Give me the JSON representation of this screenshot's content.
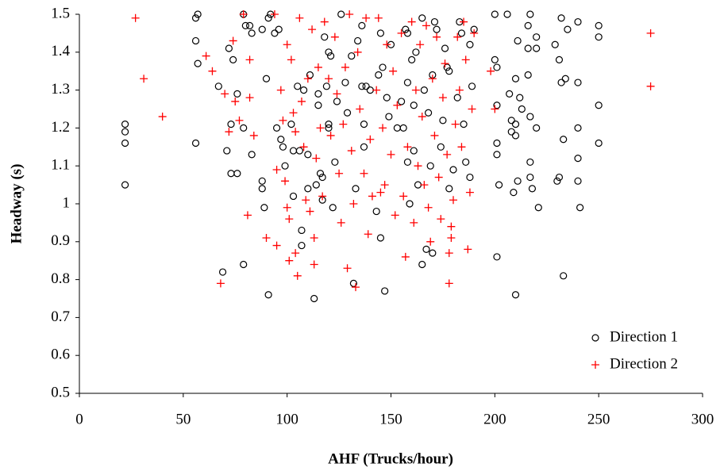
{
  "chart_data": {
    "type": "scatter",
    "xlabel": "AHF (Trucks/hour)",
    "ylabel": "Headway (s)",
    "xlim": [
      0,
      300
    ],
    "xticks": [
      0,
      50,
      100,
      150,
      200,
      250,
      300
    ],
    "ylim": [
      0.5,
      1.5
    ],
    "yticks": [
      0.5,
      0.6,
      0.7,
      0.8,
      0.9,
      1,
      1.1,
      1.2,
      1.3,
      1.4,
      1.5
    ],
    "grid": false,
    "legend": "lower right",
    "series": [
      {
        "name": "Direction 1",
        "color": "#000000",
        "marker": "circle",
        "x": [
          22,
          22,
          22,
          22,
          56,
          57,
          56,
          57,
          56,
          67,
          69,
          71,
          72,
          73,
          73,
          74,
          76,
          76,
          79,
          79,
          79,
          80,
          82,
          83,
          83,
          88,
          88,
          88,
          89,
          90,
          91,
          91,
          92,
          94,
          95,
          96,
          97,
          98,
          99,
          102,
          103,
          103,
          105,
          106,
          107,
          107,
          108,
          110,
          110,
          111,
          113,
          114,
          115,
          115,
          116,
          117,
          117,
          118,
          119,
          120,
          120,
          120,
          121,
          122,
          123,
          124,
          126,
          128,
          129,
          131,
          132,
          133,
          134,
          136,
          136,
          137,
          137,
          138,
          140,
          143,
          144,
          145,
          145,
          146,
          147,
          148,
          149,
          150,
          153,
          155,
          156,
          157,
          158,
          158,
          158,
          159,
          160,
          161,
          161,
          162,
          163,
          165,
          165,
          166,
          167,
          168,
          169,
          170,
          170,
          171,
          172,
          174,
          175,
          176,
          177,
          178,
          178,
          180,
          182,
          183,
          184,
          185,
          186,
          188,
          188,
          189,
          190,
          200,
          200,
          201,
          201,
          201,
          201,
          201,
          202,
          206,
          207,
          208,
          208,
          209,
          210,
          210,
          210,
          210,
          211,
          211,
          212,
          213,
          216,
          216,
          216,
          217,
          217,
          217,
          217,
          218,
          220,
          220,
          220,
          221,
          229,
          230,
          231,
          231,
          232,
          232,
          233,
          233,
          234,
          235,
          240,
          240,
          240,
          240,
          240,
          241,
          250,
          250,
          250,
          250
        ],
        "values": [
          1.21,
          1.19,
          1.16,
          1.05,
          1.49,
          1.5,
          1.43,
          1.37,
          1.16,
          1.31,
          0.82,
          1.14,
          1.41,
          1.21,
          1.08,
          1.38,
          1.29,
          1.08,
          1.5,
          1.2,
          0.84,
          1.47,
          1.47,
          1.45,
          1.13,
          1.46,
          1.06,
          1.04,
          0.99,
          1.33,
          0.76,
          1.49,
          1.5,
          1.45,
          1.2,
          1.46,
          1.17,
          1.15,
          1.1,
          1.21,
          1.14,
          1.02,
          1.31,
          1.14,
          0.93,
          0.89,
          1.3,
          1.04,
          1.13,
          1.34,
          0.75,
          1.05,
          1.26,
          1.29,
          1.08,
          1.07,
          1.01,
          1.44,
          1.31,
          1.4,
          1.21,
          1.2,
          1.39,
          0.99,
          1.11,
          1.27,
          1.5,
          1.32,
          1.24,
          1.39,
          0.79,
          1.04,
          1.43,
          1.47,
          1.31,
          1.21,
          1.15,
          1.31,
          1.3,
          0.98,
          1.34,
          1.45,
          0.91,
          1.36,
          0.77,
          1.28,
          1.23,
          1.42,
          1.2,
          1.27,
          1.2,
          1.46,
          1.45,
          1.32,
          1.11,
          1,
          1.38,
          1.26,
          1.14,
          1.4,
          1.05,
          1.49,
          0.84,
          1.3,
          0.88,
          1.24,
          1.1,
          0.87,
          1.34,
          1.48,
          1.46,
          1.15,
          1.22,
          1.41,
          1.36,
          1.04,
          1.35,
          1.09,
          1.28,
          1.48,
          1.45,
          1.21,
          1.11,
          1.07,
          1.42,
          1.31,
          1.46,
          1.5,
          1.38,
          1.36,
          1.26,
          1.16,
          1.13,
          0.86,
          1.05,
          1.5,
          1.29,
          1.22,
          1.19,
          1.03,
          1.33,
          1.21,
          1.18,
          0.76,
          1.43,
          1.06,
          1.28,
          1.25,
          1.47,
          1.41,
          1.34,
          1.5,
          1.23,
          1.11,
          1.07,
          1.04,
          1.44,
          1.41,
          1.2,
          0.99,
          1.42,
          1.06,
          1.38,
          1.07,
          1.49,
          1.32,
          1.17,
          0.81,
          1.33,
          1.46,
          1.48,
          1.32,
          1.2,
          1.12,
          1.06,
          0.99,
          1.47,
          1.44,
          1.26,
          1.16
        ]
      },
      {
        "name": "Direction 2",
        "color": "#ff0000",
        "marker": "plus",
        "x": [
          27,
          31,
          40,
          61,
          64,
          68,
          70,
          72,
          74,
          75,
          77,
          79,
          81,
          82,
          82,
          84,
          90,
          94,
          95,
          95,
          97,
          98,
          99,
          100,
          100,
          101,
          101,
          102,
          103,
          104,
          104,
          105,
          106,
          107,
          108,
          109,
          110,
          111,
          112,
          113,
          113,
          114,
          115,
          116,
          117,
          118,
          120,
          121,
          123,
          124,
          125,
          126,
          127,
          128,
          129,
          130,
          131,
          132,
          133,
          134,
          135,
          137,
          138,
          139,
          140,
          141,
          143,
          144,
          145,
          146,
          147,
          148,
          150,
          151,
          152,
          153,
          155,
          156,
          157,
          158,
          160,
          161,
          162,
          163,
          164,
          165,
          166,
          167,
          168,
          169,
          170,
          171,
          172,
          173,
          174,
          175,
          176,
          177,
          178,
          178,
          179,
          179,
          180,
          181,
          182,
          183,
          184,
          185,
          186,
          187,
          188,
          189,
          190,
          198,
          200,
          275,
          275
        ],
        "values": [
          1.49,
          1.33,
          1.23,
          1.39,
          1.35,
          0.79,
          1.29,
          1.19,
          1.43,
          1.27,
          1.22,
          1.5,
          0.97,
          1.38,
          1.28,
          1.18,
          0.91,
          1.5,
          1.09,
          0.89,
          1.3,
          1.22,
          1.06,
          1.42,
          0.99,
          0.96,
          0.85,
          1.38,
          1.24,
          1.19,
          0.87,
          0.81,
          1.49,
          1.27,
          1.15,
          1.01,
          1.33,
          0.98,
          1.46,
          0.91,
          0.84,
          1.12,
          1.36,
          1.2,
          1.02,
          1.48,
          1.33,
          1.18,
          1.44,
          1.29,
          1.08,
          0.95,
          1.21,
          1.36,
          0.83,
          1.5,
          1.14,
          1,
          0.78,
          1.4,
          1.25,
          1.08,
          1.49,
          0.92,
          1.17,
          1.02,
          1.3,
          1.49,
          1.03,
          1.2,
          1.05,
          1.42,
          1.13,
          1.35,
          0.97,
          1.26,
          1.45,
          1.02,
          0.86,
          1.15,
          1.48,
          0.95,
          1.3,
          1.1,
          1.42,
          1.23,
          1.05,
          1.47,
          0.99,
          0.9,
          1.33,
          1.18,
          1.44,
          1.07,
          0.96,
          1.28,
          1.37,
          1.13,
          0.87,
          0.79,
          0.94,
          0.91,
          1.01,
          1.21,
          1.44,
          1.3,
          1.15,
          1.48,
          1.38,
          0.88,
          1.03,
          1.25,
          1.45,
          1.35,
          1.25,
          1.45,
          1.31
        ]
      }
    ]
  }
}
